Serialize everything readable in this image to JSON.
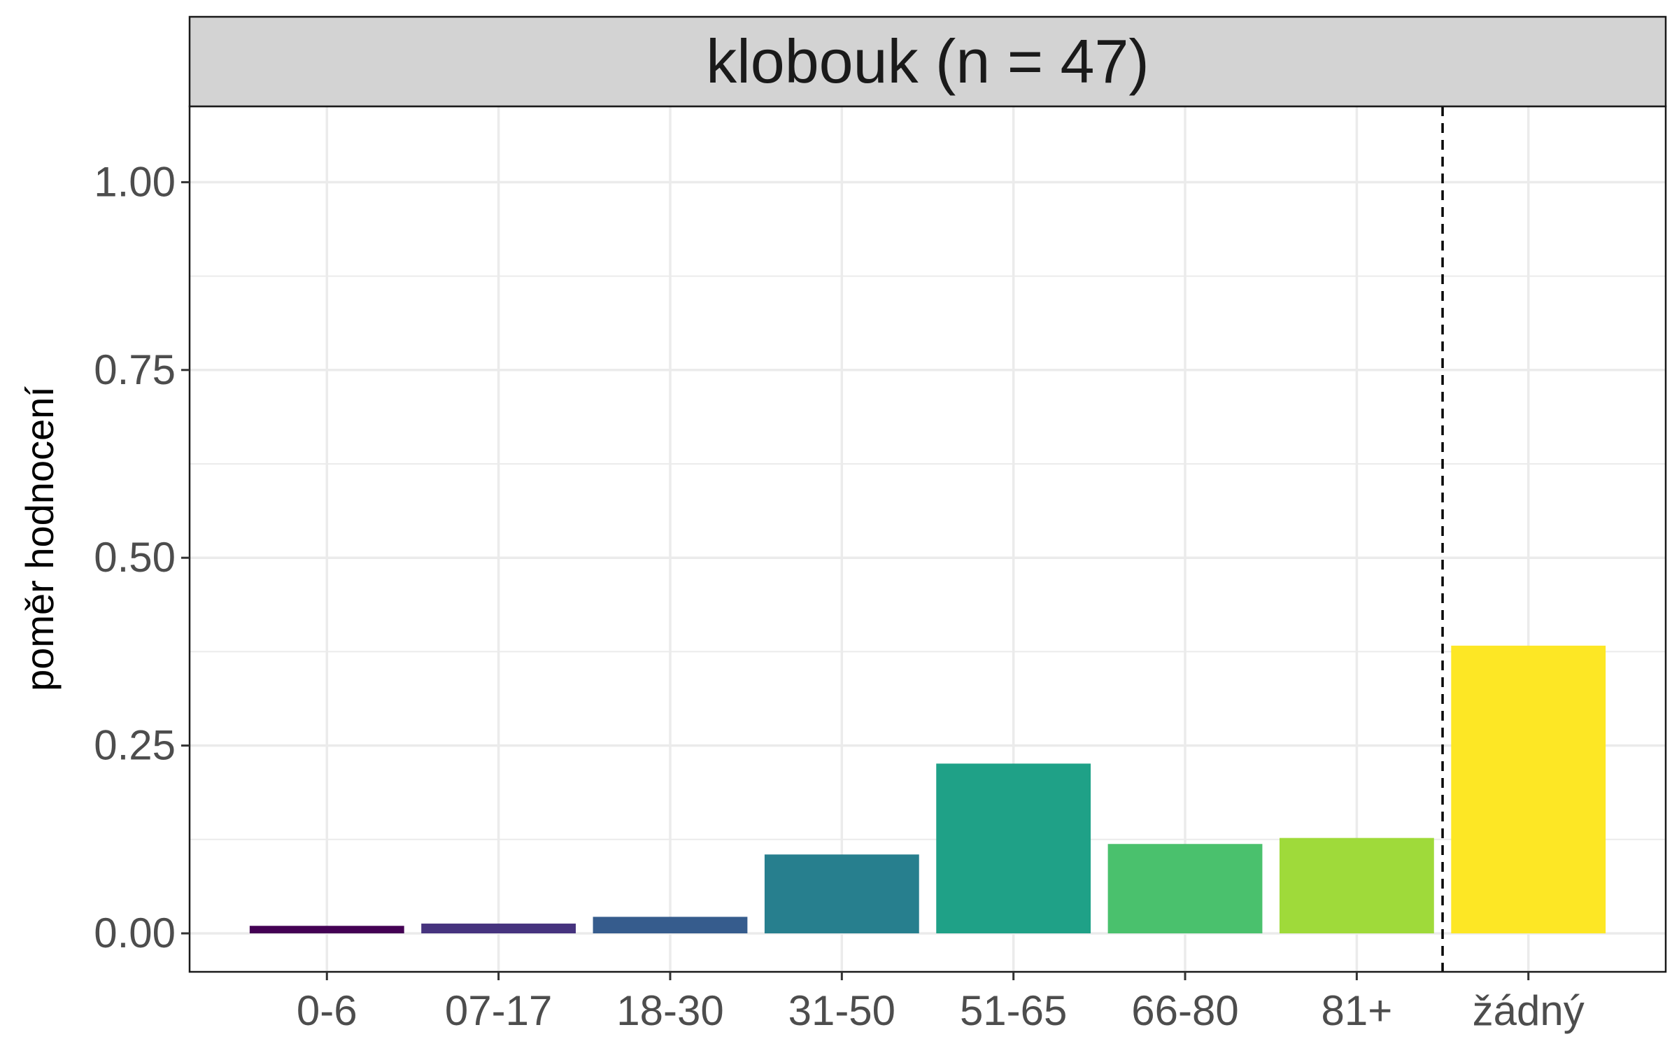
{
  "chart_data": {
    "type": "bar",
    "facet_title": "klobouk (n = 47)",
    "ylabel": "poměr hodnocení",
    "xlabel": "",
    "ylim": [
      0,
      1.1
    ],
    "yticks": [
      0.0,
      0.25,
      0.5,
      0.75,
      1.0
    ],
    "ytick_labels": [
      "0.00",
      "0.25",
      "0.50",
      "0.75",
      "1.00"
    ],
    "grid": true,
    "legend": "none",
    "categories": [
      "0-6",
      "07-17",
      "18-30",
      "31-50",
      "51-65",
      "66-80",
      "81+",
      "žádný"
    ],
    "values": [
      0.01,
      0.013,
      0.022,
      0.105,
      0.226,
      0.119,
      0.127,
      0.383
    ],
    "colors": [
      "#440154",
      "#46337E",
      "#365C8D",
      "#277F8E",
      "#1FA187",
      "#4AC16D",
      "#9FDA3A",
      "#FDE725"
    ],
    "reference_line": {
      "style": "dashed",
      "between": [
        "81+",
        "žádný"
      ]
    }
  },
  "colors": {
    "strip_background": "#d3d3d3",
    "panel_border": "#1a1a1a",
    "grid": "#ebebeb",
    "tick_text": "#4d4d4d",
    "title_text": "#1a1a1a"
  }
}
